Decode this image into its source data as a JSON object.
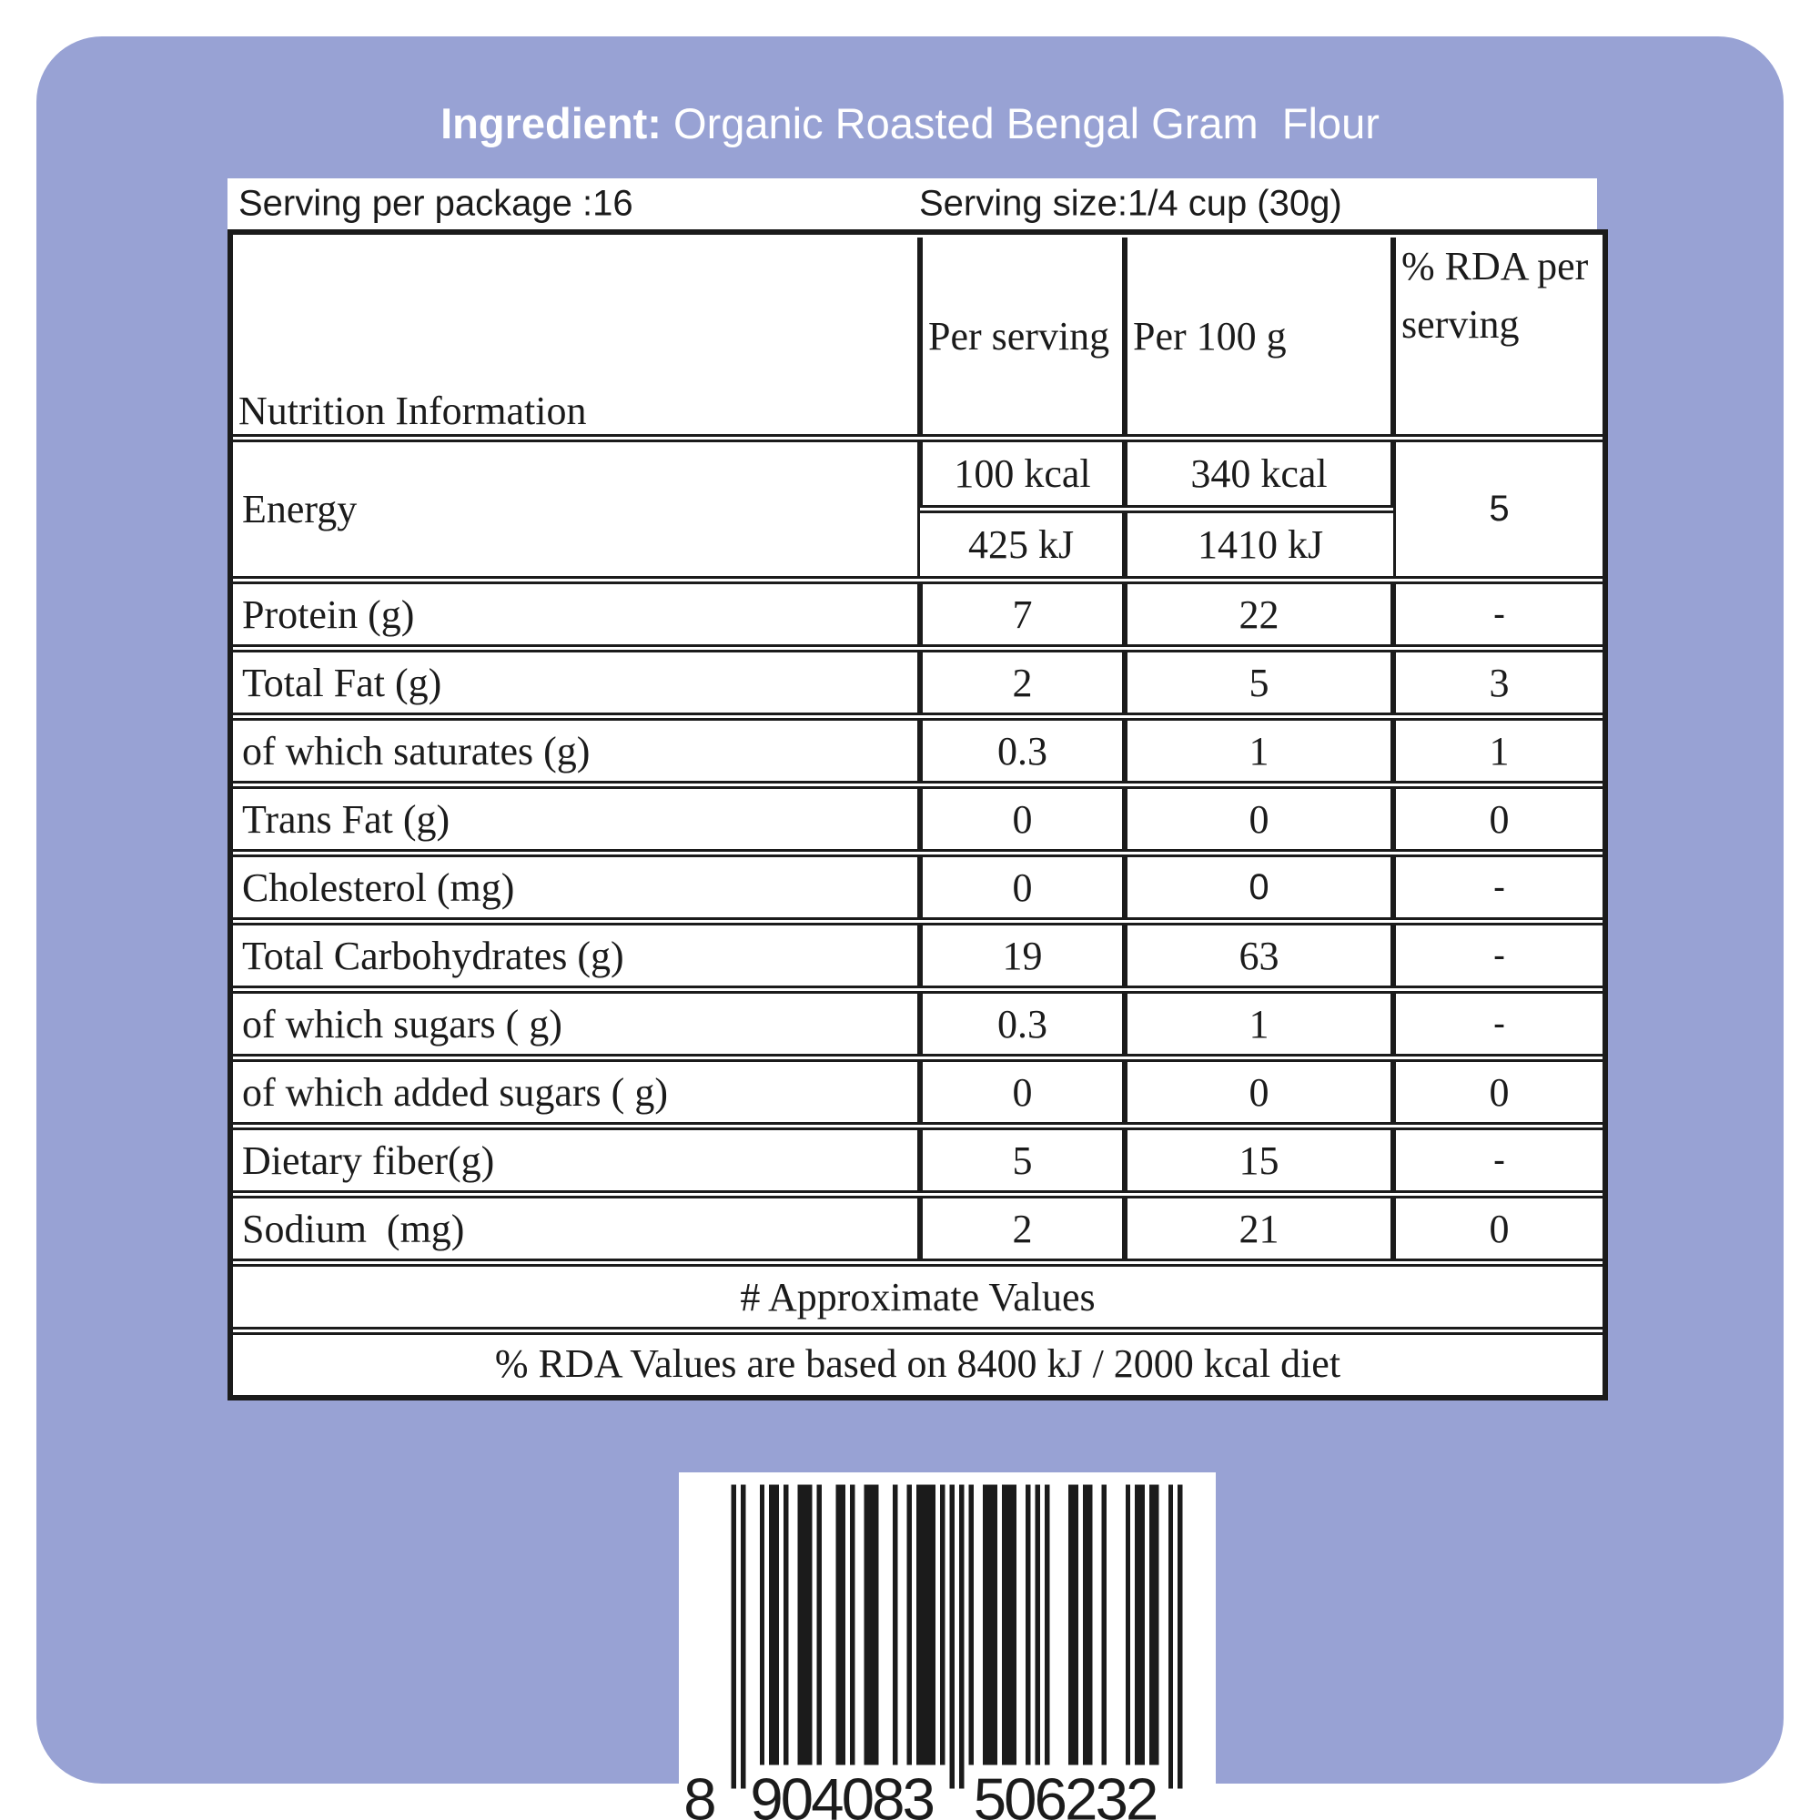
{
  "colors": {
    "card_background": "#98a2d4",
    "panel_background": "#ffffff",
    "ink": "#1b1b1b",
    "title_text": "#ffffff"
  },
  "title": {
    "label": "Ingredient:",
    "product": " Organic Roasted Bengal Gram  Flour"
  },
  "serving": {
    "per_package": "Serving per package :16",
    "size": "Serving size:1/4 cup (30g)"
  },
  "table": {
    "headers": {
      "info": "Nutrition Information",
      "per_serving": "Per serving",
      "per_100g": "Per 100 g",
      "rda": "% RDA per serving"
    },
    "energy": {
      "label": "Energy",
      "kcal_serving": "100 kcal",
      "kcal_100g": "340 kcal",
      "kj_serving": "425 kJ",
      "kj_100g": "1410 kJ",
      "rda": "5"
    },
    "rows": [
      {
        "label": "Protein (g)",
        "per_serving": "7",
        "per_100g": "22",
        "rda": {
          "v": "-",
          "sans": true
        }
      },
      {
        "label": "Total Fat (g)",
        "per_serving": "2",
        "per_100g": "5",
        "rda": "3"
      },
      {
        "label": "of which saturates (g)",
        "per_serving": "0.3",
        "per_100g": "1",
        "rda": "1"
      },
      {
        "label": "Trans Fat (g)",
        "per_serving": "0",
        "per_100g": "0",
        "rda": "0"
      },
      {
        "label": "Cholesterol (mg)",
        "per_serving": "0",
        "per_100g": {
          "v": "0",
          "sans": true
        },
        "rda": {
          "v": "-",
          "sans": true
        }
      },
      {
        "label": "Total Carbohydrates (g)",
        "per_serving": "19",
        "per_100g": "63",
        "rda": {
          "v": "-",
          "sans": true
        }
      },
      {
        "label": "of which sugars ( g)",
        "per_serving": "0.3",
        "per_100g": "1",
        "rda": {
          "v": "-",
          "sans": true
        }
      },
      {
        "label": "of which added sugars ( g)",
        "per_serving": "0",
        "per_100g": "0",
        "rda": "0"
      },
      {
        "label": "Dietary fiber(g)",
        "per_serving": "5",
        "per_100g": "15",
        "rda": {
          "v": "-",
          "sans": true
        }
      },
      {
        "label": "Sodium  (mg)",
        "per_serving": "2",
        "per_100g": "21",
        "rda": "0"
      }
    ],
    "footnotes": [
      "# Approximate Values",
      "% RDA Values are based on 8400 kJ / 2000 kcal diet"
    ]
  },
  "barcode": {
    "digits": "8904083506232",
    "left_digit": "8",
    "group1": "904083",
    "group2": "506232"
  }
}
